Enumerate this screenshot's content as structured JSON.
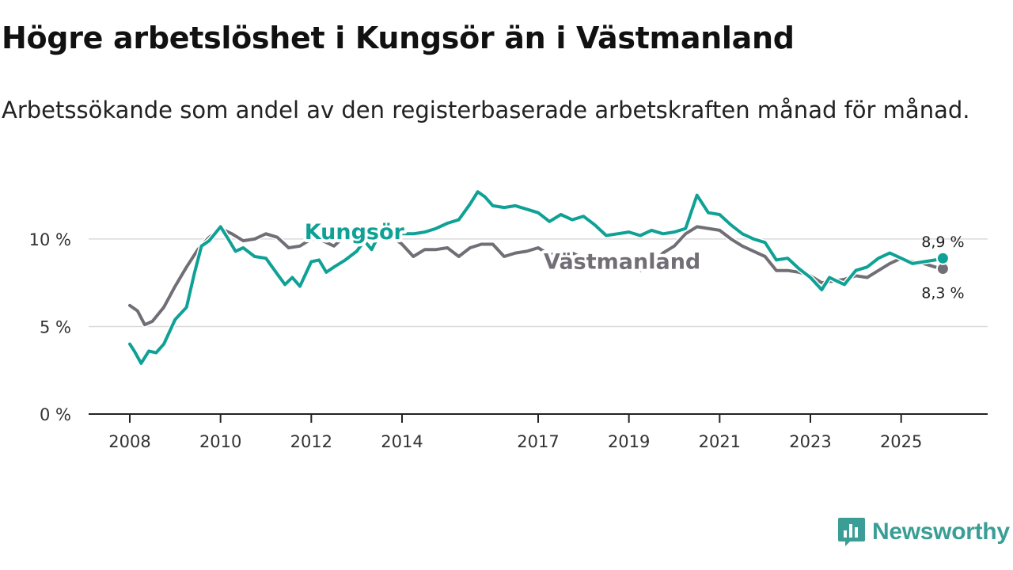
{
  "page": {
    "title": "Högre arbetslöshet i Kungsör än i Västmanland",
    "subtitle": "Arbetssökande som andel av den registerbaserade arbetskraften månad för månad."
  },
  "brand": {
    "name": "Newsworthy",
    "icon": "newsworthy-logo-icon",
    "color": "#3a9e96"
  },
  "chart_data": {
    "type": "line",
    "title": "Högre arbetslöshet i Kungsör än i Västmanland",
    "subtitle": "Arbetssökande som andel av den registerbaserade arbetskraften månad för månad.",
    "xlabel": "",
    "ylabel": "",
    "x_range": [
      2008,
      2026
    ],
    "ylim": [
      0,
      12.8
    ],
    "y_ticks": [
      {
        "value": 0,
        "label": "0 %"
      },
      {
        "value": 5,
        "label": "5 %"
      },
      {
        "value": 10,
        "label": "10 %"
      }
    ],
    "x_ticks": [
      {
        "value": 2008,
        "label": "2008"
      },
      {
        "value": 2010,
        "label": "2010"
      },
      {
        "value": 2012,
        "label": "2012"
      },
      {
        "value": 2014,
        "label": "2014"
      },
      {
        "value": 2017,
        "label": "2017"
      },
      {
        "value": 2019,
        "label": "2019"
      },
      {
        "value": 2021,
        "label": "2021"
      },
      {
        "value": 2023,
        "label": "2023"
      },
      {
        "value": 2025,
        "label": "2025"
      }
    ],
    "grid": "horizontal",
    "series": [
      {
        "name": "Västmanland",
        "color": "#716e76",
        "label": "Västmanland",
        "end_label": "8,3 %",
        "points": [
          [
            2008.0,
            6.2
          ],
          [
            2008.17,
            5.9
          ],
          [
            2008.33,
            5.1
          ],
          [
            2008.5,
            5.3
          ],
          [
            2008.75,
            6.1
          ],
          [
            2009.0,
            7.3
          ],
          [
            2009.25,
            8.4
          ],
          [
            2009.5,
            9.4
          ],
          [
            2009.75,
            10.1
          ],
          [
            2010.0,
            10.6
          ],
          [
            2010.25,
            10.3
          ],
          [
            2010.5,
            9.9
          ],
          [
            2010.75,
            10.0
          ],
          [
            2011.0,
            10.3
          ],
          [
            2011.25,
            10.1
          ],
          [
            2011.5,
            9.5
          ],
          [
            2011.75,
            9.6
          ],
          [
            2012.0,
            10.0
          ],
          [
            2012.25,
            9.9
          ],
          [
            2012.5,
            9.6
          ],
          [
            2012.75,
            10.2
          ],
          [
            2013.0,
            10.6
          ],
          [
            2013.25,
            10.6
          ],
          [
            2013.5,
            10.3
          ],
          [
            2013.75,
            10.2
          ],
          [
            2014.0,
            9.7
          ],
          [
            2014.25,
            9.0
          ],
          [
            2014.5,
            9.4
          ],
          [
            2014.75,
            9.4
          ],
          [
            2015.0,
            9.5
          ],
          [
            2015.25,
            9.0
          ],
          [
            2015.5,
            9.5
          ],
          [
            2015.75,
            9.7
          ],
          [
            2016.0,
            9.7
          ],
          [
            2016.25,
            9.0
          ],
          [
            2016.5,
            9.2
          ],
          [
            2016.75,
            9.3
          ],
          [
            2017.0,
            9.5
          ],
          [
            2017.25,
            9.1
          ],
          [
            2017.5,
            9.2
          ],
          [
            2017.75,
            9.2
          ],
          [
            2018.0,
            8.9
          ],
          [
            2018.25,
            8.3
          ],
          [
            2018.5,
            8.4
          ],
          [
            2018.75,
            8.6
          ],
          [
            2019.0,
            8.7
          ],
          [
            2019.25,
            8.2
          ],
          [
            2019.5,
            8.5
          ],
          [
            2019.75,
            9.2
          ],
          [
            2020.0,
            9.6
          ],
          [
            2020.25,
            10.3
          ],
          [
            2020.5,
            10.7
          ],
          [
            2020.75,
            10.6
          ],
          [
            2021.0,
            10.5
          ],
          [
            2021.25,
            10.0
          ],
          [
            2021.5,
            9.6
          ],
          [
            2021.75,
            9.3
          ],
          [
            2022.0,
            9.0
          ],
          [
            2022.25,
            8.2
          ],
          [
            2022.5,
            8.2
          ],
          [
            2022.75,
            8.1
          ],
          [
            2023.0,
            7.9
          ],
          [
            2023.25,
            7.5
          ],
          [
            2023.5,
            7.6
          ],
          [
            2023.75,
            7.7
          ],
          [
            2024.0,
            7.9
          ],
          [
            2024.25,
            7.8
          ],
          [
            2024.5,
            8.2
          ],
          [
            2024.75,
            8.6
          ],
          [
            2025.0,
            8.9
          ],
          [
            2025.25,
            8.7
          ],
          [
            2025.5,
            8.6
          ],
          [
            2025.75,
            8.4
          ],
          [
            2025.92,
            8.3
          ]
        ]
      },
      {
        "name": "Kungsör",
        "color": "#0fa195",
        "label": "Kungsör",
        "end_label": "8,9 %",
        "points": [
          [
            2008.0,
            4.0
          ],
          [
            2008.1,
            3.6
          ],
          [
            2008.25,
            2.9
          ],
          [
            2008.42,
            3.6
          ],
          [
            2008.58,
            3.5
          ],
          [
            2008.75,
            4.0
          ],
          [
            2009.0,
            5.4
          ],
          [
            2009.25,
            6.1
          ],
          [
            2009.42,
            8.0
          ],
          [
            2009.58,
            9.6
          ],
          [
            2009.75,
            9.9
          ],
          [
            2010.0,
            10.7
          ],
          [
            2010.17,
            10.0
          ],
          [
            2010.33,
            9.3
          ],
          [
            2010.5,
            9.5
          ],
          [
            2010.75,
            9.0
          ],
          [
            2011.0,
            8.9
          ],
          [
            2011.25,
            8.0
          ],
          [
            2011.42,
            7.4
          ],
          [
            2011.58,
            7.8
          ],
          [
            2011.75,
            7.3
          ],
          [
            2012.0,
            8.7
          ],
          [
            2012.17,
            8.8
          ],
          [
            2012.33,
            8.1
          ],
          [
            2012.5,
            8.4
          ],
          [
            2012.75,
            8.8
          ],
          [
            2013.0,
            9.3
          ],
          [
            2013.17,
            9.9
          ],
          [
            2013.33,
            9.4
          ],
          [
            2013.5,
            10.3
          ],
          [
            2013.75,
            10.6
          ],
          [
            2014.0,
            10.3
          ],
          [
            2014.25,
            10.3
          ],
          [
            2014.5,
            10.4
          ],
          [
            2014.75,
            10.6
          ],
          [
            2015.0,
            10.9
          ],
          [
            2015.25,
            11.1
          ],
          [
            2015.5,
            12.0
          ],
          [
            2015.67,
            12.7
          ],
          [
            2015.83,
            12.4
          ],
          [
            2016.0,
            11.9
          ],
          [
            2016.25,
            11.8
          ],
          [
            2016.5,
            11.9
          ],
          [
            2016.75,
            11.7
          ],
          [
            2017.0,
            11.5
          ],
          [
            2017.25,
            11.0
          ],
          [
            2017.5,
            11.4
          ],
          [
            2017.75,
            11.1
          ],
          [
            2018.0,
            11.3
          ],
          [
            2018.25,
            10.8
          ],
          [
            2018.5,
            10.2
          ],
          [
            2018.75,
            10.3
          ],
          [
            2019.0,
            10.4
          ],
          [
            2019.25,
            10.2
          ],
          [
            2019.5,
            10.5
          ],
          [
            2019.75,
            10.3
          ],
          [
            2020.0,
            10.4
          ],
          [
            2020.25,
            10.6
          ],
          [
            2020.5,
            12.5
          ],
          [
            2020.75,
            11.5
          ],
          [
            2021.0,
            11.4
          ],
          [
            2021.25,
            10.8
          ],
          [
            2021.5,
            10.3
          ],
          [
            2021.75,
            10.0
          ],
          [
            2022.0,
            9.8
          ],
          [
            2022.25,
            8.8
          ],
          [
            2022.5,
            8.9
          ],
          [
            2022.75,
            8.3
          ],
          [
            2023.0,
            7.8
          ],
          [
            2023.25,
            7.1
          ],
          [
            2023.42,
            7.8
          ],
          [
            2023.58,
            7.6
          ],
          [
            2023.75,
            7.4
          ],
          [
            2024.0,
            8.2
          ],
          [
            2024.25,
            8.4
          ],
          [
            2024.5,
            8.9
          ],
          [
            2024.75,
            9.2
          ],
          [
            2025.0,
            8.9
          ],
          [
            2025.25,
            8.6
          ],
          [
            2025.5,
            8.7
          ],
          [
            2025.75,
            8.8
          ],
          [
            2025.92,
            8.9
          ]
        ]
      }
    ]
  }
}
